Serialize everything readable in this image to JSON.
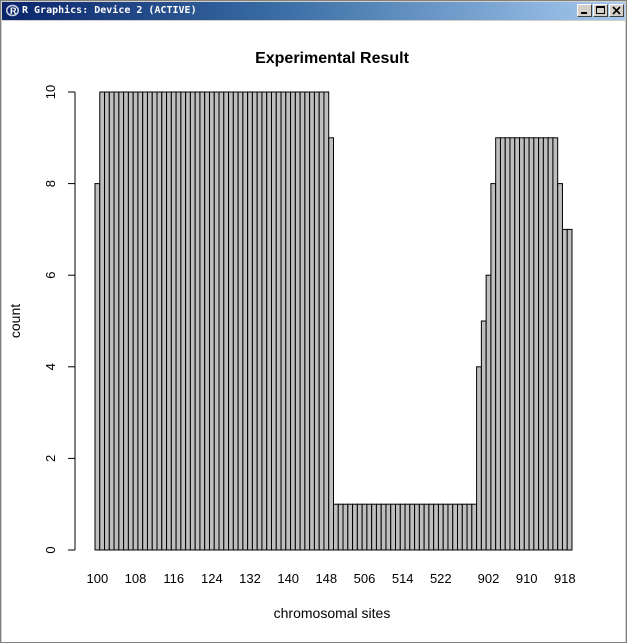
{
  "window": {
    "title": "R Graphics: Device 2 (ACTIVE)",
    "icons": {
      "app": "r-logo-icon",
      "minimize": "minimize-icon",
      "maximize": "maximize-icon",
      "close": "close-icon"
    }
  },
  "chart_data": {
    "type": "bar",
    "title": "Experimental Result",
    "xlabel": "chromosomal sites",
    "ylabel": "count",
    "ylim": [
      0,
      10
    ],
    "yticks": [
      0,
      2,
      4,
      6,
      8,
      10
    ],
    "bar_color": "#bebebe",
    "labeled_categories": [
      "100",
      "108",
      "116",
      "124",
      "132",
      "140",
      "148",
      "506",
      "514",
      "522",
      "902",
      "910",
      "918"
    ],
    "categories": [
      "100",
      "101",
      "102",
      "103",
      "104",
      "105",
      "106",
      "107",
      "108",
      "109",
      "110",
      "111",
      "112",
      "113",
      "114",
      "115",
      "116",
      "117",
      "118",
      "119",
      "120",
      "121",
      "122",
      "123",
      "124",
      "125",
      "126",
      "127",
      "128",
      "129",
      "130",
      "131",
      "132",
      "133",
      "134",
      "135",
      "136",
      "137",
      "138",
      "139",
      "140",
      "141",
      "142",
      "143",
      "144",
      "145",
      "146",
      "147",
      "148",
      "149",
      "500",
      "501",
      "502",
      "503",
      "504",
      "505",
      "506",
      "507",
      "508",
      "509",
      "510",
      "511",
      "512",
      "513",
      "514",
      "515",
      "516",
      "517",
      "518",
      "519",
      "520",
      "521",
      "522",
      "523",
      "524",
      "525",
      "526",
      "527",
      "528",
      "529",
      "900",
      "901",
      "902",
      "903",
      "904",
      "905",
      "906",
      "907",
      "908",
      "909",
      "910",
      "911",
      "912",
      "913",
      "914",
      "915",
      "916",
      "917",
      "918",
      "919"
    ],
    "values": [
      8,
      10,
      10,
      10,
      10,
      10,
      10,
      10,
      10,
      10,
      10,
      10,
      10,
      10,
      10,
      10,
      10,
      10,
      10,
      10,
      10,
      10,
      10,
      10,
      10,
      10,
      10,
      10,
      10,
      10,
      10,
      10,
      10,
      10,
      10,
      10,
      10,
      10,
      10,
      10,
      10,
      10,
      10,
      10,
      10,
      10,
      10,
      10,
      10,
      9,
      1,
      1,
      1,
      1,
      1,
      1,
      1,
      1,
      1,
      1,
      1,
      1,
      1,
      1,
      1,
      1,
      1,
      1,
      1,
      1,
      1,
      1,
      1,
      1,
      1,
      1,
      1,
      1,
      1,
      1,
      4,
      5,
      6,
      8,
      9,
      9,
      9,
      9,
      9,
      9,
      9,
      9,
      9,
      9,
      9,
      9,
      9,
      8,
      7,
      7
    ]
  }
}
